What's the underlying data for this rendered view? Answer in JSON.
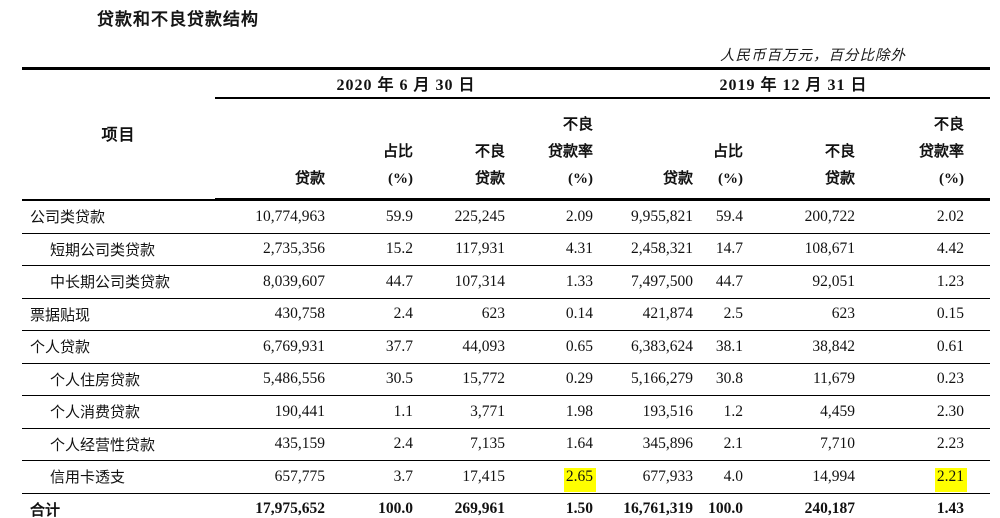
{
  "title": "贷款和不良贷款结构",
  "unit_note": "人民币百万元，百分比除外",
  "table": {
    "item_header": "项目",
    "periods": [
      "2020 年 6 月 30 日",
      "2019 年 12 月 31 日"
    ],
    "col_headers": [
      [
        "贷款"
      ],
      [
        "占比",
        "(%)"
      ],
      [
        "不良",
        "贷款"
      ],
      [
        "不良",
        "贷款率",
        "(%)"
      ],
      [
        "贷款"
      ],
      [
        "占比",
        "(%)"
      ],
      [
        "不良",
        "贷款"
      ],
      [
        "不良",
        "贷款率",
        "(%)"
      ]
    ],
    "highlight_color": "#ffff00",
    "rows": [
      {
        "label": "公司类贷款",
        "indent": false,
        "total": false,
        "values": [
          "10,774,963",
          "59.9",
          "225,245",
          "2.09",
          "9,955,821",
          "59.4",
          "200,722",
          "2.02"
        ]
      },
      {
        "label": "短期公司类贷款",
        "indent": true,
        "total": false,
        "values": [
          "2,735,356",
          "15.2",
          "117,931",
          "4.31",
          "2,458,321",
          "14.7",
          "108,671",
          "4.42"
        ]
      },
      {
        "label": "中长期公司类贷款",
        "indent": true,
        "total": false,
        "values": [
          "8,039,607",
          "44.7",
          "107,314",
          "1.33",
          "7,497,500",
          "44.7",
          "92,051",
          "1.23"
        ]
      },
      {
        "label": "票据贴现",
        "indent": false,
        "total": false,
        "values": [
          "430,758",
          "2.4",
          "623",
          "0.14",
          "421,874",
          "2.5",
          "623",
          "0.15"
        ]
      },
      {
        "label": "个人贷款",
        "indent": false,
        "total": false,
        "values": [
          "6,769,931",
          "37.7",
          "44,093",
          "0.65",
          "6,383,624",
          "38.1",
          "38,842",
          "0.61"
        ]
      },
      {
        "label": "个人住房贷款",
        "indent": true,
        "total": false,
        "values": [
          "5,486,556",
          "30.5",
          "15,772",
          "0.29",
          "5,166,279",
          "30.8",
          "11,679",
          "0.23"
        ]
      },
      {
        "label": "个人消费贷款",
        "indent": true,
        "total": false,
        "values": [
          "190,441",
          "1.1",
          "3,771",
          "1.98",
          "193,516",
          "1.2",
          "4,459",
          "2.30"
        ]
      },
      {
        "label": "个人经营性贷款",
        "indent": true,
        "total": false,
        "values": [
          "435,159",
          "2.4",
          "7,135",
          "1.64",
          "345,896",
          "2.1",
          "7,710",
          "2.23"
        ]
      },
      {
        "label": "信用卡透支",
        "indent": true,
        "total": false,
        "highlight": [
          3,
          7
        ],
        "values": [
          "657,775",
          "3.7",
          "17,415",
          "2.65",
          "677,933",
          "4.0",
          "14,994",
          "2.21"
        ]
      },
      {
        "label": "合计",
        "indent": false,
        "total": true,
        "values": [
          "17,975,652",
          "100.0",
          "269,961",
          "1.50",
          "16,761,319",
          "100.0",
          "240,187",
          "1.43"
        ]
      }
    ]
  }
}
